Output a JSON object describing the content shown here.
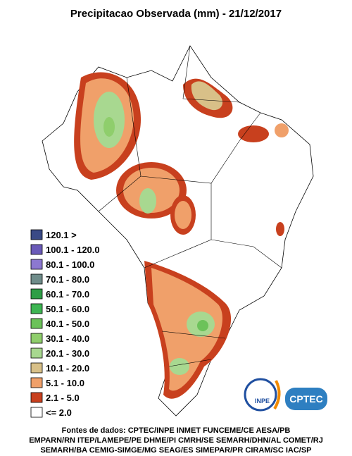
{
  "title": "Precipitacao Observada (mm) - 21/12/2017",
  "legend": [
    {
      "label": "120.1 >",
      "color": "#3a4a86"
    },
    {
      "label": "100.1 - 120.0",
      "color": "#6a5ab8"
    },
    {
      "label": "80.1 - 100.0",
      "color": "#8c78d0"
    },
    {
      "label": "70.1 - 80.0",
      "color": "#6f8c8a"
    },
    {
      "label": "60.1 - 70.0",
      "color": "#2e9e46"
    },
    {
      "label": "50.1 - 60.0",
      "color": "#3db552"
    },
    {
      "label": "40.1 - 50.0",
      "color": "#6cc25a"
    },
    {
      "label": "30.1 - 40.0",
      "color": "#8fce6c"
    },
    {
      "label": "20.1 - 30.0",
      "color": "#a8d890"
    },
    {
      "label": "10.1 - 20.0",
      "color": "#d8c088"
    },
    {
      "label": "5.1 - 10.0",
      "color": "#f0a06a"
    },
    {
      "label": "2.1 - 5.0",
      "color": "#c8401e"
    },
    {
      "label": "<= 2.0",
      "color": "#ffffff"
    }
  ],
  "sources": [
    "Fontes de dados: CPTEC/INPE INMET FUNCEME/CE AESA/PB",
    "EMPARN/RN ITEP/LAMEPE/PE DHME/PI CMRH/SE SEMARH/DHN/AL COMET/RJ",
    "SEMARH/BA CEMIG-SIMGE/MG SEAG/ES SIMEPAR/PR CIRAM/SC IAC/SP"
  ],
  "logos": {
    "inpe": "INPE",
    "cptec": "CPTEC"
  }
}
